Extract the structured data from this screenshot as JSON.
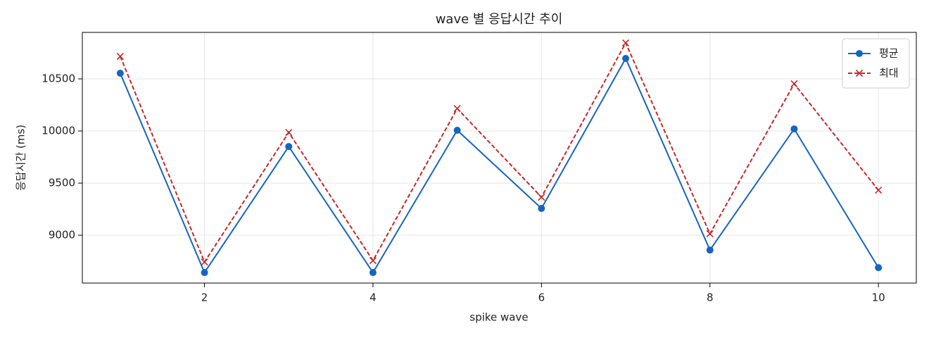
{
  "chart_data": {
    "type": "line",
    "title": "wave 별 응답시간 추이",
    "xlabel": "spike wave",
    "ylabel": "응답시간 (ms)",
    "x": [
      1,
      2,
      3,
      4,
      5,
      6,
      7,
      8,
      9,
      10
    ],
    "series": [
      {
        "name": "평균",
        "color": "#1565c0",
        "marker": "o",
        "dash": false,
        "values": [
          10554,
          8642,
          9851,
          8642,
          10007,
          9257,
          10696,
          8858,
          10020,
          8689
        ]
      },
      {
        "name": "최대",
        "color": "#c62828",
        "marker": "x",
        "dash": true,
        "values": [
          10716,
          8743,
          9986,
          8757,
          10216,
          9365,
          10845,
          9014,
          10453,
          9432
        ]
      }
    ],
    "xlim": [
      0.55,
      10.45
    ],
    "ylim": [
      8541,
      10946
    ],
    "xticks": [
      2,
      4,
      6,
      8,
      10
    ],
    "yticks": [
      9000,
      9500,
      10000,
      10500
    ],
    "grid": true,
    "legend": "upper right"
  }
}
